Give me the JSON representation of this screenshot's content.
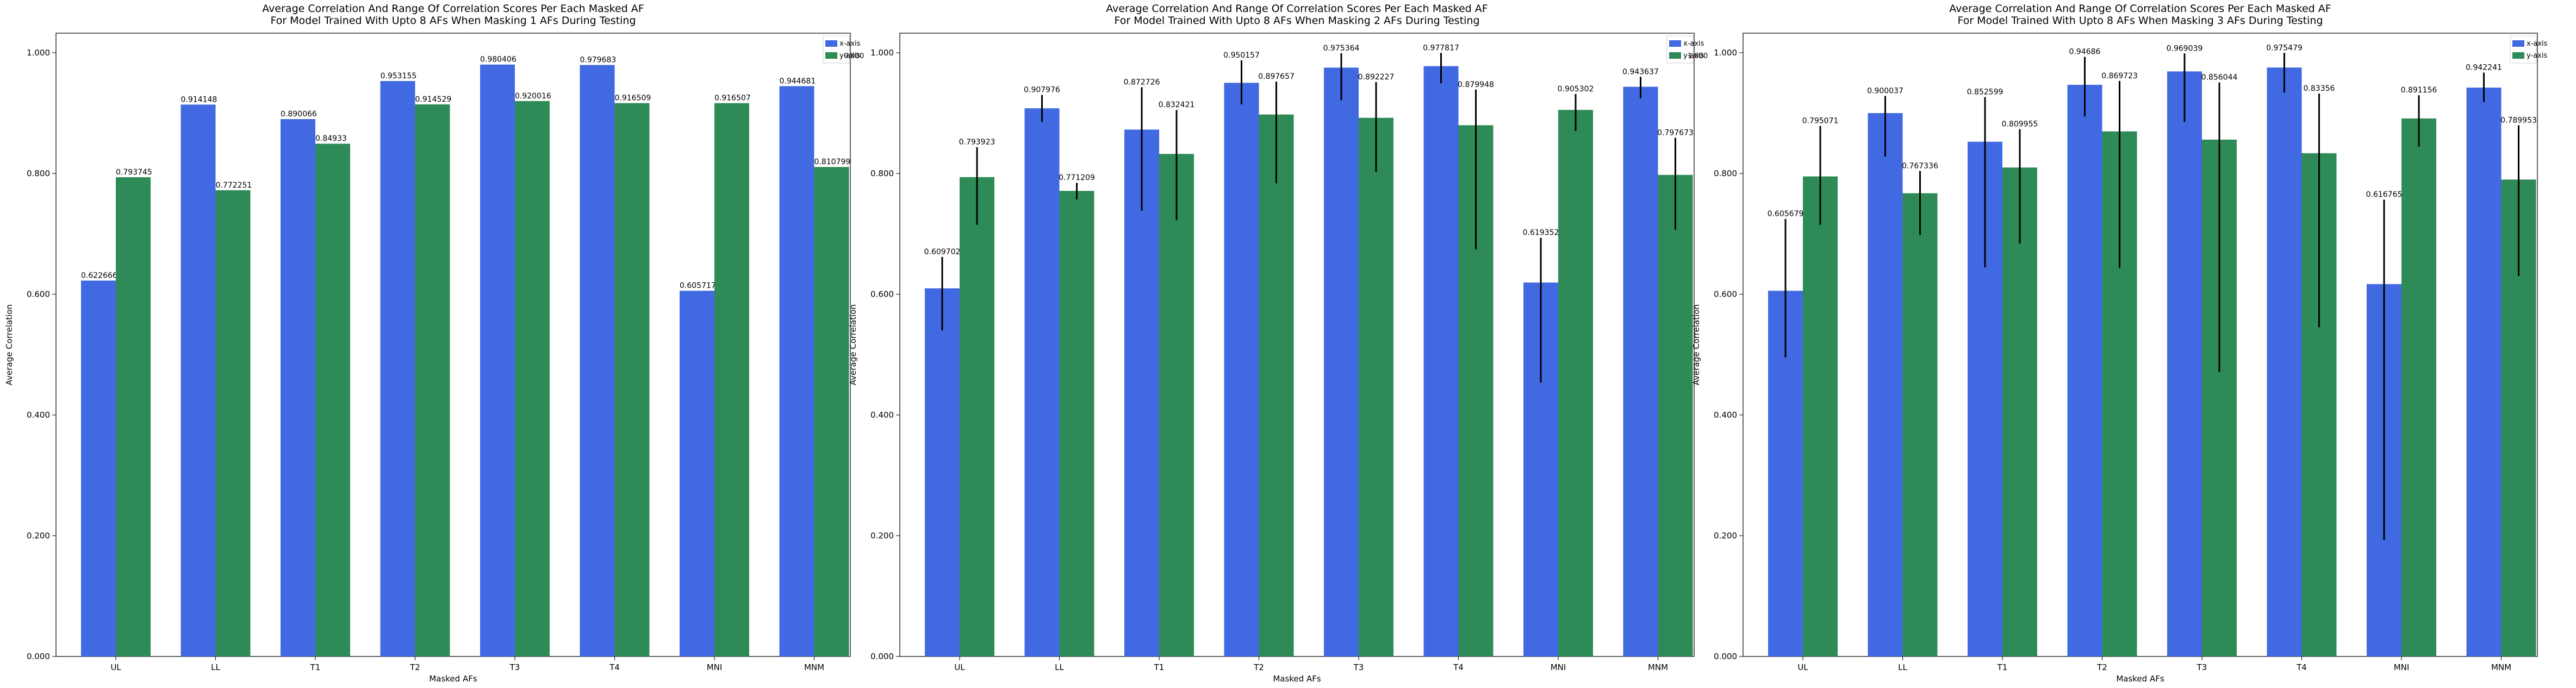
{
  "colors": {
    "x_axis": "#4169e1",
    "y_axis": "#2e8b57",
    "error_bar": "#000000",
    "axis": "#000000",
    "background": "#ffffff"
  },
  "chart_data": [
    {
      "type": "bar",
      "title": "Average Correlation And Range Of Correlation Scores Per Each Masked AF\nFor Model Trained With Upto 8 AFs When Masking 1 AFs During Testing",
      "xlabel": "Masked AFs",
      "ylabel": "Average Correlation",
      "ylim": [
        0,
        1.0324
      ],
      "yticks": [
        "0.000",
        "0.200",
        "0.400",
        "0.600",
        "0.800",
        "1.000"
      ],
      "yticks_values": [
        0,
        0.2,
        0.4,
        0.6,
        0.8,
        1.0
      ],
      "categories": [
        "UL",
        "LL",
        "T1",
        "T2",
        "T3",
        "T4",
        "MNI",
        "MNM"
      ],
      "legend": {
        "placement": "top-right",
        "entries": [
          "x-axis",
          "y-axis"
        ]
      },
      "overlap_text": "0.000",
      "series": [
        {
          "name": "x-axis",
          "color": "#4169e1",
          "values": [
            0.622666,
            0.914148,
            0.890066,
            0.953155,
            0.980406,
            0.979683,
            0.605717,
            0.944681
          ],
          "labels": [
            "0.622666",
            "0.914148",
            "0.890066",
            "0.953155",
            "0.980406",
            "0.979683",
            "0.605717",
            "0.944681"
          ],
          "err_low": [
            0,
            0,
            0,
            0,
            0,
            0,
            0,
            0
          ],
          "err_high": [
            0,
            0,
            0,
            0,
            0,
            0,
            0,
            0
          ]
        },
        {
          "name": "y-axis",
          "color": "#2e8b57",
          "values": [
            0.793745,
            0.772251,
            0.84933,
            0.914529,
            0.920016,
            0.916509,
            0.916507,
            0.810799
          ],
          "labels": [
            "0.793745",
            "0.772251",
            "0.84933",
            "0.914529",
            "0.920016",
            "0.916509",
            "0.916507",
            "0.810799"
          ],
          "err_low": [
            0,
            0,
            0,
            0,
            0,
            0,
            0,
            0
          ],
          "err_high": [
            0,
            0,
            0,
            0,
            0,
            0,
            0,
            0
          ]
        }
      ]
    },
    {
      "type": "bar",
      "title": "Average Correlation And Range Of Correlation Scores Per Each Masked AF\nFor Model Trained With Upto 8 AFs When Masking 2 AFs During Testing",
      "xlabel": "Masked AFs",
      "ylabel": "Average Correlation",
      "ylim": [
        0,
        1.0324
      ],
      "yticks": [
        "0.000",
        "0.200",
        "0.400",
        "0.600",
        "0.800",
        "1.000"
      ],
      "yticks_values": [
        0,
        0.2,
        0.4,
        0.6,
        0.8,
        1.0
      ],
      "categories": [
        "UL",
        "LL",
        "T1",
        "T2",
        "T3",
        "T4",
        "MNI",
        "MNM"
      ],
      "legend": {
        "placement": "top-right",
        "entries": [
          "x-axis",
          "y-axis"
        ]
      },
      "overlap_text": "1.000",
      "series": [
        {
          "name": "x-axis",
          "color": "#4169e1",
          "values": [
            0.609702,
            0.907976,
            0.872726,
            0.950157,
            0.975364,
            0.977817,
            0.619352,
            0.943637
          ],
          "labels": [
            "0.609702",
            "0.907976",
            "0.872726",
            "0.950157",
            "0.975364",
            "0.977817",
            "0.619352",
            "0.943637"
          ],
          "err_low": [
            0.5402,
            0.8855,
            0.7382,
            0.9144,
            0.9212,
            0.9494,
            0.4535,
            0.9247
          ],
          "err_high": [
            0.6619,
            0.9301,
            0.9429,
            0.9875,
            0.9992,
            0.9997,
            0.6935,
            0.9601
          ]
        },
        {
          "name": "y-axis",
          "color": "#2e8b57",
          "values": [
            0.793923,
            0.771209,
            0.832421,
            0.897657,
            0.892227,
            0.879948,
            0.905302,
            0.797673
          ],
          "labels": [
            "0.793923",
            "0.771209",
            "0.832421",
            "0.897657",
            "0.892227",
            "0.879948",
            "0.905302",
            "0.797673"
          ],
          "err_low": [
            0.7152,
            0.7571,
            0.7226,
            0.7838,
            0.8025,
            0.6743,
            0.8703,
            0.7069
          ],
          "err_high": [
            0.8435,
            0.7845,
            0.9052,
            0.9521,
            0.9514,
            0.9389,
            0.9317,
            0.8592
          ]
        }
      ]
    },
    {
      "type": "bar",
      "title": "Average Correlation And Range Of Correlation Scores Per Each Masked AF\nFor Model Trained With Upto 8 AFs When Masking 3 AFs During Testing",
      "xlabel": "Masked AFs",
      "ylabel": "Average Correlation",
      "ylim": [
        0,
        1.0324
      ],
      "yticks": [
        "0.000",
        "0.200",
        "0.400",
        "0.600",
        "0.800",
        "1.000"
      ],
      "yticks_values": [
        0,
        0.2,
        0.4,
        0.6,
        0.8,
        1.0
      ],
      "categories": [
        "UL",
        "LL",
        "T1",
        "T2",
        "T3",
        "T4",
        "MNI",
        "MNM"
      ],
      "legend": {
        "placement": "top-right",
        "entries": [
          "x-axis",
          "y-axis"
        ]
      },
      "overlap_text": "",
      "series": [
        {
          "name": "x-axis",
          "color": "#4169e1",
          "values": [
            0.605679,
            0.900037,
            0.852599,
            0.94686,
            0.969039,
            0.975479,
            0.616765,
            0.942241
          ],
          "labels": [
            "0.605679",
            "0.900037",
            "0.852599",
            "0.94686",
            "0.969039",
            "0.975479",
            "0.616765",
            "0.942241"
          ],
          "err_low": [
            0.4951,
            0.8279,
            0.6445,
            0.8944,
            0.8853,
            0.9339,
            0.1929,
            0.9184
          ],
          "err_high": [
            0.7248,
            0.9283,
            0.9266,
            0.9931,
            0.9988,
            0.9997,
            0.7567,
            0.9671
          ]
        },
        {
          "name": "y-axis",
          "color": "#2e8b57",
          "values": [
            0.795071,
            0.767336,
            0.809955,
            0.869723,
            0.856044,
            0.83356,
            0.891156,
            0.789953
          ],
          "labels": [
            "0.795071",
            "0.767336",
            "0.809955",
            "0.869723",
            "0.856044",
            "0.83356",
            "0.891156",
            "0.789953"
          ],
          "err_low": [
            0.7152,
            0.6982,
            0.6838,
            0.6434,
            0.4712,
            0.5452,
            0.8447,
            0.6302
          ],
          "err_high": [
            0.8787,
            0.8042,
            0.8734,
            0.9533,
            0.9509,
            0.9324,
            0.9296,
            0.8798
          ]
        }
      ]
    }
  ]
}
